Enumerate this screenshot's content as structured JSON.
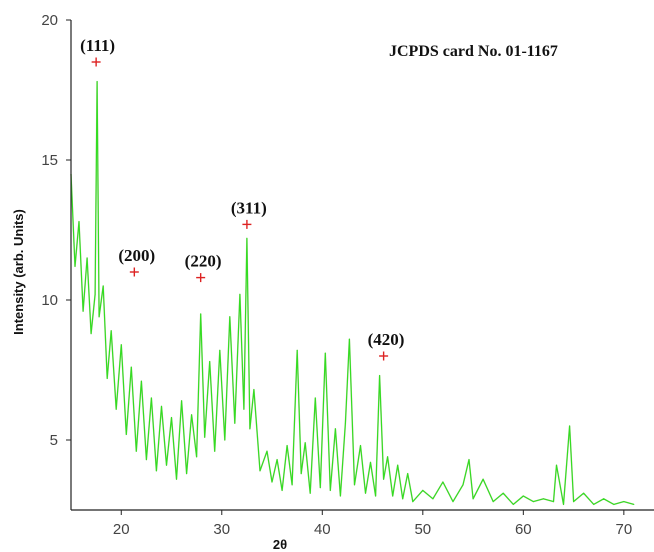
{
  "chart_data": {
    "type": "line",
    "title": "",
    "xlabel": "2θ",
    "ylabel": "Intensity (arb. Units)",
    "xlim": [
      15,
      73
    ],
    "ylim": [
      2.5,
      20
    ],
    "x_ticks": [
      20,
      30,
      40,
      50,
      60,
      70
    ],
    "y_ticks": [
      5,
      10,
      15,
      20
    ],
    "grid": false,
    "annotation": "JCPDS card No. 01-1167",
    "series": [
      {
        "color": "#33dd22",
        "x": [
          15.0,
          15.4,
          15.8,
          16.2,
          16.6,
          17.0,
          17.4,
          17.6,
          17.8,
          18.2,
          18.6,
          19.0,
          19.5,
          20.0,
          20.5,
          21.0,
          21.5,
          22.0,
          22.5,
          23.0,
          23.5,
          24.0,
          24.5,
          25.0,
          25.5,
          26.0,
          26.5,
          27.0,
          27.5,
          27.9,
          28.3,
          28.8,
          29.3,
          29.8,
          30.3,
          30.8,
          31.3,
          31.8,
          32.2,
          32.5,
          32.8,
          33.2,
          33.8,
          34.5,
          35.0,
          35.5,
          36.0,
          36.5,
          37.0,
          37.5,
          37.9,
          38.3,
          38.8,
          39.3,
          39.8,
          40.3,
          40.8,
          41.3,
          41.8,
          42.3,
          42.7,
          43.2,
          43.8,
          44.3,
          44.8,
          45.3,
          45.7,
          46.1,
          46.5,
          47.0,
          47.5,
          48.0,
          48.5,
          49.0,
          50.0,
          51.0,
          52.0,
          53.0,
          54.0,
          54.6,
          55.0,
          56.0,
          57.0,
          58.0,
          59.0,
          60.0,
          61.0,
          62.0,
          63.0,
          63.3,
          64.0,
          64.6,
          65.0,
          66.0,
          67.0,
          68.0,
          69.0,
          70.0,
          71.0
        ],
        "y": [
          14.5,
          11.2,
          12.8,
          9.6,
          11.5,
          8.8,
          10.2,
          17.8,
          9.4,
          10.5,
          7.2,
          8.9,
          6.1,
          8.4,
          5.2,
          7.6,
          4.6,
          7.1,
          4.3,
          6.5,
          3.9,
          6.2,
          4.1,
          5.8,
          3.6,
          6.4,
          3.8,
          5.9,
          4.4,
          9.5,
          5.1,
          7.8,
          4.6,
          8.2,
          5.0,
          9.4,
          5.6,
          10.2,
          6.1,
          12.2,
          5.4,
          6.8,
          3.9,
          4.6,
          3.5,
          4.3,
          3.2,
          4.8,
          3.4,
          8.2,
          3.8,
          4.9,
          3.1,
          6.5,
          3.3,
          8.1,
          3.2,
          5.4,
          3.0,
          5.6,
          8.6,
          3.4,
          4.8,
          3.1,
          4.2,
          3.0,
          7.3,
          3.6,
          4.4,
          3.0,
          4.1,
          2.9,
          3.8,
          2.8,
          3.2,
          2.9,
          3.5,
          2.8,
          3.4,
          4.3,
          2.9,
          3.6,
          2.8,
          3.1,
          2.7,
          3.0,
          2.8,
          2.9,
          2.8,
          4.1,
          2.7,
          5.5,
          2.8,
          3.1,
          2.7,
          2.9,
          2.7,
          2.8,
          2.7
        ]
      }
    ],
    "peak_markers": [
      {
        "label": "(111)",
        "x": 17.5,
        "y": 18.5
      },
      {
        "label": "(200)",
        "x": 21.3,
        "y": 11.0
      },
      {
        "label": "(220)",
        "x": 27.9,
        "y": 10.8
      },
      {
        "label": "(311)",
        "x": 32.5,
        "y": 12.7
      },
      {
        "label": "(420)",
        "x": 46.1,
        "y": 8.0
      }
    ],
    "colors": {
      "line": "#33dd22",
      "line_dark": "#998855",
      "marker": "#dd2222",
      "axis": "#222222"
    }
  }
}
